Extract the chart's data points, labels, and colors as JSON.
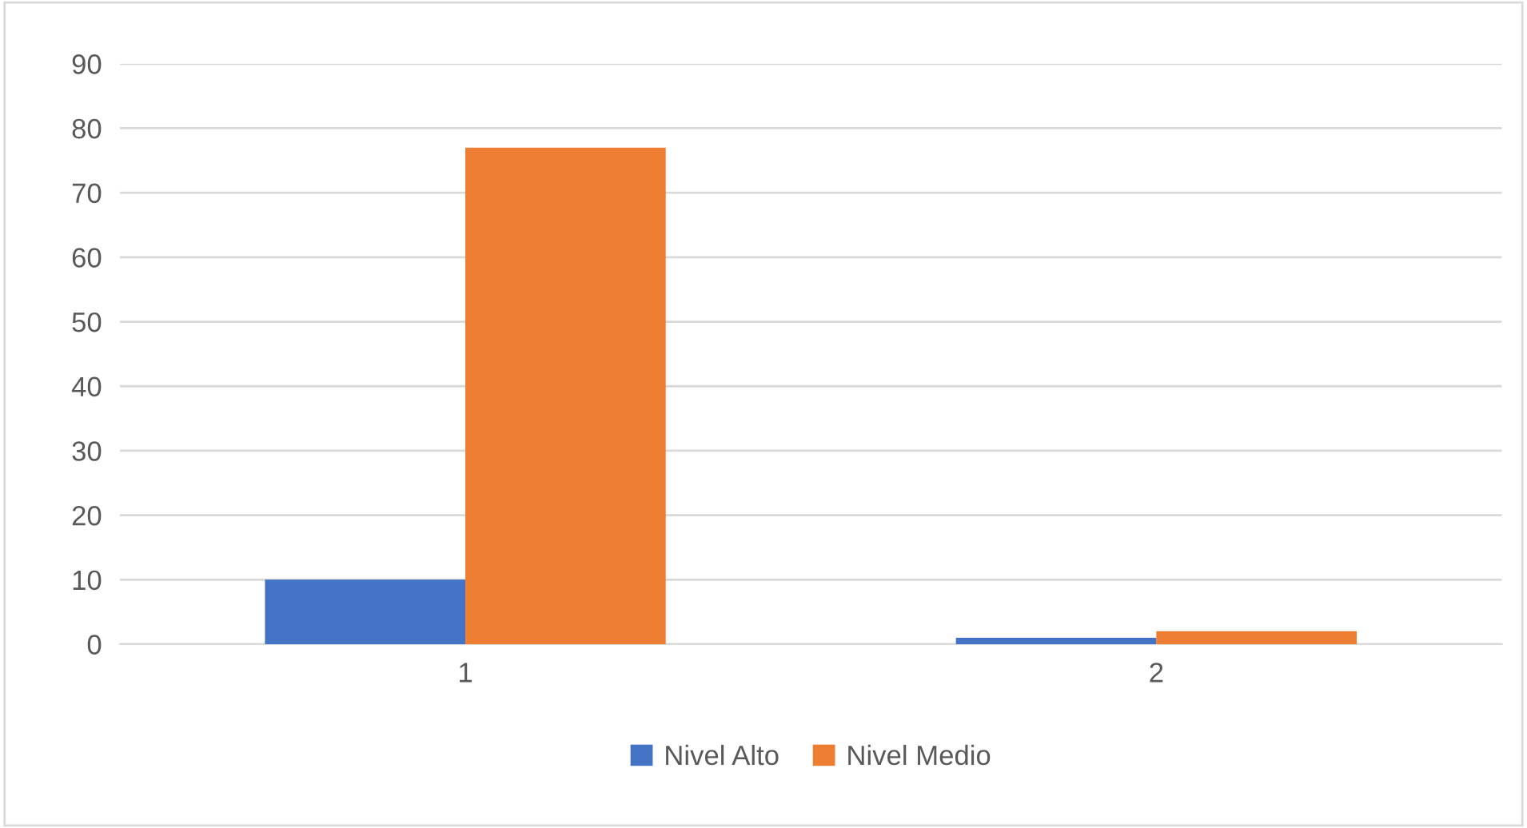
{
  "chart_data": {
    "type": "bar",
    "categories": [
      "1",
      "2"
    ],
    "series": [
      {
        "name": "Nivel Alto",
        "color": "#4472c4",
        "values": [
          10,
          1
        ]
      },
      {
        "name": "Nivel Medio",
        "color": "#ed7d31",
        "values": [
          77,
          2
        ]
      }
    ],
    "ylim": [
      0,
      90
    ],
    "yticks": [
      0,
      10,
      20,
      30,
      40,
      50,
      60,
      70,
      80,
      90
    ],
    "grid": "y",
    "legend": "bottom"
  }
}
